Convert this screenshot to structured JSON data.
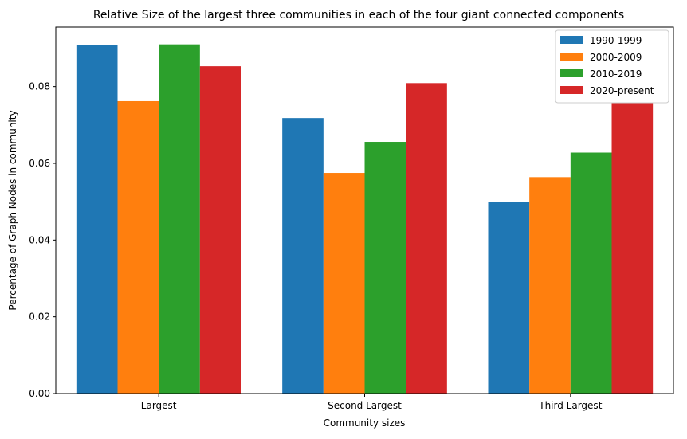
{
  "chart_data": {
    "type": "bar",
    "title": "Relative Size of the largest three communities in each of the four giant connected components",
    "xlabel": "Community sizes",
    "ylabel": "Percentage of Graph Nodes in community",
    "categories": [
      "Largest",
      "Second Largest",
      "Third Largest"
    ],
    "ylim": [
      0,
      0.0955
    ],
    "yticks": [
      0.0,
      0.02,
      0.04,
      0.06,
      0.08
    ],
    "ytick_labels": [
      "0.00",
      "0.02",
      "0.04",
      "0.06",
      "0.08"
    ],
    "legend_position": "top-right",
    "grid": false,
    "series": [
      {
        "name": "1990-1999",
        "color": "#1f77b4",
        "values": [
          0.0909,
          0.0718,
          0.0499
        ]
      },
      {
        "name": "2000-2009",
        "color": "#ff7f0e",
        "values": [
          0.0762,
          0.0575,
          0.0564
        ]
      },
      {
        "name": "2010-2019",
        "color": "#2ca02c",
        "values": [
          0.091,
          0.0656,
          0.0628
        ]
      },
      {
        "name": "2020-present",
        "color": "#d62728",
        "values": [
          0.0853,
          0.0809,
          0.0757
        ]
      }
    ]
  }
}
